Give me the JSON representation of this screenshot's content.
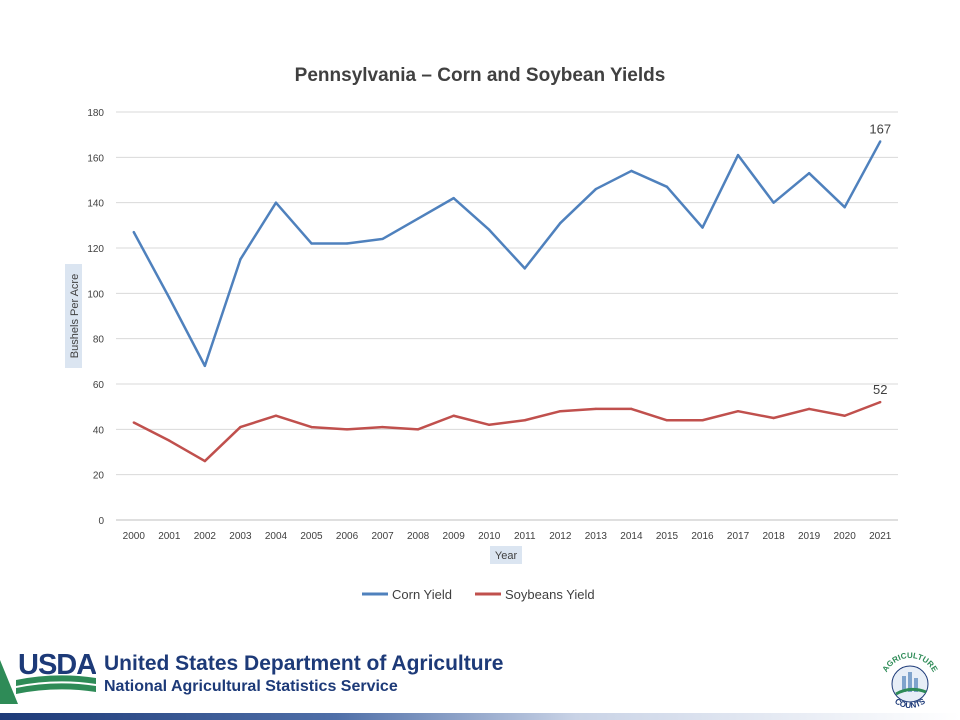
{
  "footer": {
    "org_name": "United States Department of Agriculture",
    "service_name": "National Agricultural Statistics Service",
    "logo_text": "USDA",
    "badge_text_top": "AGRICULTURE",
    "badge_text_bottom": "COUNTS"
  },
  "colors": {
    "corn": "#4f81bd",
    "soybeans": "#c0504d",
    "usda_blue": "#1d3a78",
    "usda_green": "#2e8b57",
    "grid": "#d9d9d9",
    "axis_label_bg": "#dbe5f1"
  },
  "chart_data": {
    "type": "line",
    "title": "Pennsylvania – Corn and Soybean Yields",
    "xlabel": "Year",
    "ylabel": "Bushels Per Acre",
    "ylim": [
      0,
      180
    ],
    "yticks": [
      0,
      20,
      40,
      60,
      80,
      100,
      120,
      140,
      160,
      180
    ],
    "grid": true,
    "legend_position": "bottom",
    "categories": [
      "2000",
      "2001",
      "2002",
      "2003",
      "2004",
      "2005",
      "2006",
      "2007",
      "2008",
      "2009",
      "2010",
      "2011",
      "2012",
      "2013",
      "2014",
      "2015",
      "2016",
      "2017",
      "2018",
      "2019",
      "2020",
      "2021"
    ],
    "series": [
      {
        "name": "Corn Yield",
        "color": "#4f81bd",
        "values": [
          127,
          98,
          68,
          115,
          140,
          122,
          122,
          124,
          133,
          142,
          128,
          111,
          131,
          146,
          154,
          147,
          129,
          161,
          140,
          153,
          138,
          167
        ],
        "end_label": "167"
      },
      {
        "name": "Soybeans Yield",
        "color": "#c0504d",
        "values": [
          43,
          35,
          26,
          41,
          46,
          41,
          40,
          41,
          40,
          46,
          42,
          44,
          48,
          49,
          49,
          44,
          44,
          48,
          45,
          49,
          46,
          52
        ],
        "end_label": "52"
      }
    ]
  }
}
